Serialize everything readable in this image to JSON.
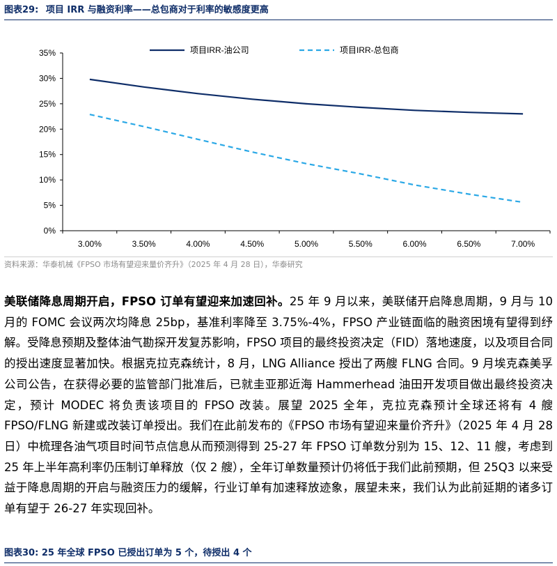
{
  "figure1": {
    "label": "图表29:",
    "title": "项目 IRR 与融资利率——总包商对于利率的敏感度更高"
  },
  "chart_data": {
    "type": "line",
    "categories": [
      "3.00%",
      "3.50%",
      "4.00%",
      "4.50%",
      "5.00%",
      "5.50%",
      "6.00%",
      "6.50%",
      "7.00%"
    ],
    "y_ticks": [
      "0%",
      "5%",
      "10%",
      "15%",
      "20%",
      "25%",
      "30%",
      "35%"
    ],
    "ylim": [
      0,
      35
    ],
    "series": [
      {
        "name": "项目IRR-油公司",
        "style": "solid",
        "color": "#0e2d68",
        "values": [
          29.8,
          28.3,
          27.0,
          25.9,
          25.0,
          24.3,
          23.7,
          23.3,
          23.0
        ]
      },
      {
        "name": "项目IRR-总包商",
        "style": "dashed",
        "color": "#2aa8e6",
        "values": [
          22.9,
          20.5,
          18.0,
          15.5,
          13.2,
          11.2,
          9.0,
          7.2,
          5.6
        ]
      }
    ],
    "legend_position": "top-right",
    "grid": false
  },
  "source": "资料来源：华泰机械《FPSO 市场有望迎来量价齐升》（2025 年 4 月 28 日），华泰研究",
  "body": {
    "lead": "美联储降息周期开启，FPSO 订单有望迎来加速回补。",
    "text": "25 年 9 月以来，美联储开启降息周期，9 月与 10 月的 FOMC 会议两次均降息 25bp，基准利率降至 3.75%-4%，FPSO 产业链面临的融资困境有望得到纾解。受降息预期及整体油气勘探开发复苏影响，FPSO 项目的最终投资决定（FID）落地速度，以及项目合同的授出速度显著加快。根据克拉克森统计，8 月，LNG Alliance 授出了两艘 FLNG 合同。9 月埃克森美孚公司公告，在获得必要的监管部门批准后，已就圭亚那近海 Hammerhead 油田开发项目做出最终投资决定，预计 MODEC 将负责该项目的 FPSO 改装。展望 2025 全年，克拉克森预计全球还将有 4 艘 FPSO/FLNG 新建或改装订单授出。我们在此前发布的《FPSO 市场有望迎来量价齐升》（2025 年 4 月 28 日）中梳理各油气项目时间节点信息从而预测得到 25-27 年 FPSO 订单数分别为 15、12、11 艘，考虑到 25 年上半年高利率仍压制订单释放（仅 2 艘），全年订单数量预计仍将低于我们此前预期，但 25Q3 以来受益于降息周期的开启与融资压力的缓解，行业订单有加速释放迹象，展望未来，我们认为此前延期的诸多订单有望于 26-27 年实现回补。"
  },
  "figure2": {
    "label": "图表30:",
    "title": "25 年全球 FPSO 已授出订单为 5 个，待授出 4 个"
  }
}
